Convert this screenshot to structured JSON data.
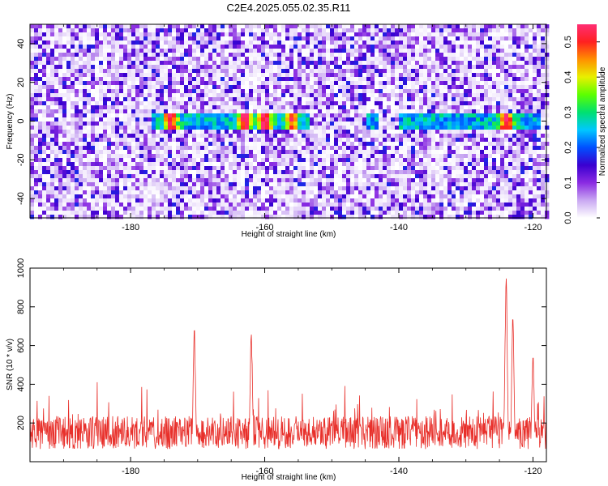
{
  "title": "C2E4.2025.055.02.35.R11",
  "colors": {
    "frame": "#000000",
    "snr_line": "#e8302b",
    "colormap_stops": [
      "#ffffff",
      "#c9a8f2",
      "#8a2be2",
      "#3a00d0",
      "#0050ff",
      "#00c8ff",
      "#00e070",
      "#5cff00",
      "#e8f000",
      "#ff9000",
      "#ff2020",
      "#ff2e74"
    ]
  },
  "chart_data": [
    {
      "type": "heatmap",
      "title": "C2E4.2025.055.02.35.R11",
      "xlabel": "Height of straight line (km)",
      "ylabel": "Frequency (Hz)",
      "xlim": [
        -195,
        -118
      ],
      "ylim": [
        -50,
        50
      ],
      "xticks": [
        -180,
        -160,
        -140,
        -120
      ],
      "xtick_labels": [
        "-180",
        "-160",
        "-140",
        "-120"
      ],
      "yticks": [
        -40,
        -20,
        0,
        20,
        40
      ],
      "ytick_labels": [
        "-40",
        "-20",
        "0",
        "20",
        "40"
      ],
      "colorbar": {
        "label": "Normalized spectral amplitude",
        "range": [
          0.0,
          0.55
        ],
        "ticks": [
          0.0,
          0.1,
          0.2,
          0.3,
          0.4,
          0.5
        ],
        "tick_labels": [
          "0.0",
          "0.1",
          "0.2",
          "0.3",
          "0.4",
          "0.5"
        ]
      },
      "signal_band_hz": 0,
      "signal_segments_km": [
        [
          -177,
          -168
        ],
        [
          -168,
          -164
        ],
        [
          -164,
          -158
        ],
        [
          -158,
          -153
        ],
        [
          -145,
          -143
        ],
        [
          -140,
          -128
        ],
        [
          -128,
          -119
        ]
      ],
      "peak_amplitudes": [
        {
          "x": -174,
          "value": 0.5
        },
        {
          "x": -163,
          "value": 0.5
        },
        {
          "x": -160,
          "value": 0.5
        },
        {
          "x": -156,
          "value": 0.4
        },
        {
          "x": -124,
          "value": 0.5
        }
      ]
    },
    {
      "type": "line",
      "xlabel": "Height of straight line (km)",
      "ylabel": "SNR (10 * v/v)",
      "xlim": [
        -195,
        -118
      ],
      "ylim": [
        0,
        1000
      ],
      "xticks": [
        -180,
        -160,
        -140,
        -120
      ],
      "xtick_labels": [
        "-180",
        "-160",
        "-140",
        "-120"
      ],
      "yticks": [
        200,
        400,
        600,
        800,
        1000
      ],
      "ytick_labels": [
        "200",
        "400",
        "600",
        "800",
        "1000"
      ],
      "baseline_snr": 150,
      "peaks": [
        {
          "x": -170.5,
          "y": 710
        },
        {
          "x": -162.0,
          "y": 700
        },
        {
          "x": -124.0,
          "y": 1000
        },
        {
          "x": -123.0,
          "y": 760
        },
        {
          "x": -120.0,
          "y": 590
        }
      ]
    }
  ]
}
